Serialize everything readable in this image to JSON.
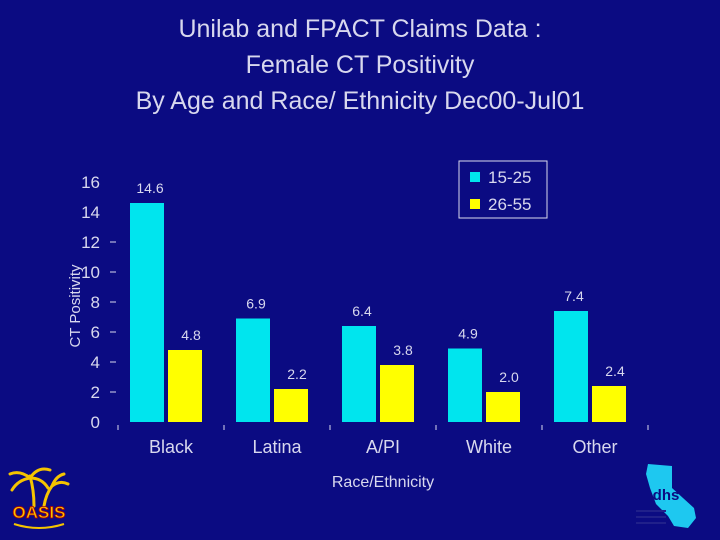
{
  "title_lines": [
    "Unilab and FPACT Claims Data :",
    "Female CT Positivity",
    "By Age and Race/ Ethnicity Dec00-Jul01"
  ],
  "logos": {
    "left_text": "OASIS",
    "right_text": "dhs"
  },
  "colors": {
    "background": "#0b0b82",
    "series1": "#00e5ee",
    "series2": "#ffff00",
    "text": "#d8d8ee"
  },
  "chart_data": {
    "type": "bar",
    "title": "Unilab and FPACT Claims Data : Female CT Positivity By Age and Race/ Ethnicity Dec00-Jul01",
    "xlabel": "Race/Ethnicity",
    "ylabel": "CT Positivity",
    "ylim": [
      0,
      16
    ],
    "yticks": [
      "0",
      "2",
      "4",
      "6",
      "8",
      "10",
      "12",
      "14",
      "16"
    ],
    "categories": [
      "Black",
      "Latina",
      "A/PI",
      "White",
      "Other"
    ],
    "series": [
      {
        "name": "15-25",
        "values": [
          14.6,
          6.9,
          6.4,
          4.9,
          7.4
        ],
        "labels": [
          "14.6",
          "6.9",
          "6.4",
          "4.9",
          "7.4"
        ]
      },
      {
        "name": "26-55",
        "values": [
          4.8,
          2.2,
          3.8,
          2.0,
          2.4
        ],
        "labels": [
          "4.8",
          "2.2",
          "3.8",
          "2.0",
          "2.4"
        ]
      }
    ],
    "legend_position": "top-right",
    "grid": false
  }
}
